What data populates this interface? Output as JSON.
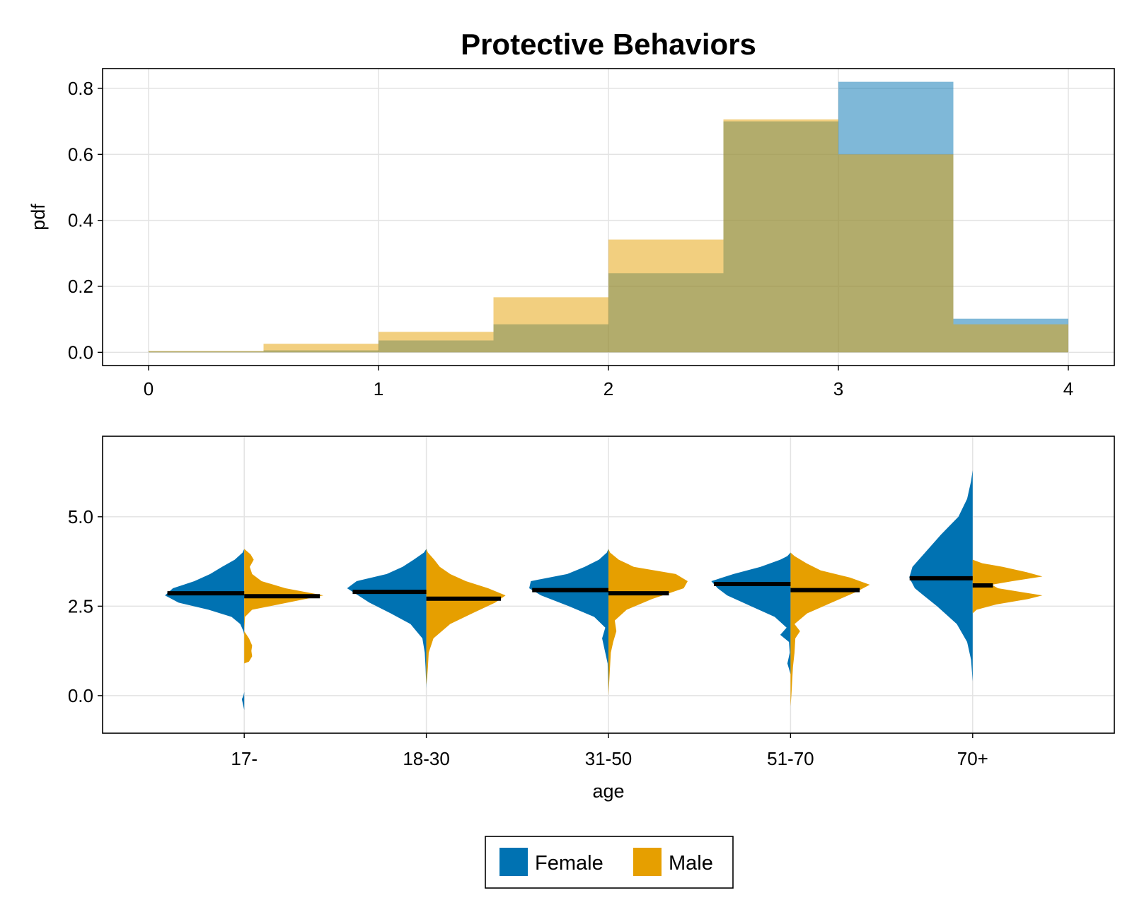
{
  "colors": {
    "female": "#0072b2",
    "male": "#e69f00"
  },
  "chart_data": [
    {
      "type": "histogram",
      "title": "Protective  Behaviors",
      "xlabel": "",
      "ylabel": "pdf",
      "xlim": [
        -0.2,
        4.2
      ],
      "ylim": [
        -0.04,
        0.86
      ],
      "xticks": [
        "0",
        "1",
        "2",
        "3",
        "4"
      ],
      "yticks": [
        "0.0",
        "0.2",
        "0.4",
        "0.6",
        "0.8"
      ],
      "grid": true,
      "bin_edges": [
        0,
        0.5,
        1.0,
        1.5,
        2.0,
        2.5,
        3.0,
        3.5,
        4.0
      ],
      "series": [
        {
          "name": "Female",
          "color": "#0072b2",
          "opacity": 0.5,
          "values": [
            0.003,
            0.006,
            0.036,
            0.085,
            0.24,
            0.7,
            0.82,
            0.102
          ]
        },
        {
          "name": "Male",
          "color": "#e69f00",
          "opacity": 0.5,
          "values": [
            0.004,
            0.026,
            0.062,
            0.167,
            0.342,
            0.706,
            0.6,
            0.085
          ]
        }
      ]
    },
    {
      "type": "violin",
      "xlabel": "age",
      "ylabel": "",
      "categories": [
        "17-",
        "18-30",
        "31-50",
        "51-70",
        "70+"
      ],
      "ylim": [
        -1.05,
        7.25
      ],
      "yticks": [
        "0.0",
        "2.5",
        "5.0"
      ],
      "grid": true,
      "side_by_side": {
        "left": "Female",
        "right": "Male"
      },
      "medians": {
        "Female": [
          2.86,
          2.9,
          2.95,
          3.12,
          3.28
        ],
        "Male": [
          2.78,
          2.71,
          2.86,
          2.95,
          3.08
        ]
      },
      "density_profiles": {
        "Female": [
          [
            [
              -0.4,
              0
            ],
            [
              -0.3,
              0.01
            ],
            [
              -0.1,
              0.03
            ],
            [
              0.0,
              0.01
            ],
            [
              0.1,
              0
            ],
            [
              1.7,
              0
            ],
            [
              1.8,
              0.01
            ],
            [
              2.0,
              0.05
            ],
            [
              2.2,
              0.16
            ],
            [
              2.4,
              0.45
            ],
            [
              2.6,
              0.83
            ],
            [
              2.8,
              1.0
            ],
            [
              3.0,
              0.9
            ],
            [
              3.2,
              0.63
            ],
            [
              3.4,
              0.43
            ],
            [
              3.6,
              0.28
            ],
            [
              3.8,
              0.12
            ],
            [
              4.0,
              0.02
            ],
            [
              4.1,
              0
            ]
          ],
          [
            [
              0.2,
              0
            ],
            [
              0.8,
              0.01
            ],
            [
              1.2,
              0.02
            ],
            [
              1.6,
              0.05
            ],
            [
              2.0,
              0.2
            ],
            [
              2.3,
              0.45
            ],
            [
              2.6,
              0.72
            ],
            [
              2.8,
              0.86
            ],
            [
              3.0,
              1.0
            ],
            [
              3.2,
              0.88
            ],
            [
              3.4,
              0.5
            ],
            [
              3.6,
              0.3
            ],
            [
              3.8,
              0.16
            ],
            [
              4.0,
              0.03
            ],
            [
              4.1,
              0
            ]
          ],
          [
            [
              0.1,
              0
            ],
            [
              0.9,
              0.01
            ],
            [
              1.3,
              0.05
            ],
            [
              1.6,
              0.08
            ],
            [
              1.9,
              0.04
            ],
            [
              2.2,
              0.18
            ],
            [
              2.5,
              0.5
            ],
            [
              2.8,
              0.85
            ],
            [
              3.0,
              1.0
            ],
            [
              3.2,
              0.98
            ],
            [
              3.4,
              0.52
            ],
            [
              3.6,
              0.3
            ],
            [
              3.8,
              0.12
            ],
            [
              4.0,
              0.02
            ],
            [
              4.1,
              0
            ]
          ],
          [
            [
              0.6,
              0
            ],
            [
              0.9,
              0.04
            ],
            [
              1.2,
              0.01
            ],
            [
              1.5,
              0.02
            ],
            [
              1.7,
              0.13
            ],
            [
              1.9,
              0.05
            ],
            [
              2.2,
              0.2
            ],
            [
              2.5,
              0.5
            ],
            [
              2.8,
              0.8
            ],
            [
              3.0,
              0.92
            ],
            [
              3.2,
              1.0
            ],
            [
              3.4,
              0.72
            ],
            [
              3.6,
              0.38
            ],
            [
              3.8,
              0.13
            ],
            [
              3.9,
              0.04
            ],
            [
              4.0,
              0
            ]
          ],
          [
            [
              0.4,
              0
            ],
            [
              1.0,
              0.02
            ],
            [
              1.5,
              0.07
            ],
            [
              2.0,
              0.2
            ],
            [
              2.5,
              0.45
            ],
            [
              2.8,
              0.62
            ],
            [
              3.0,
              0.73
            ],
            [
              3.3,
              0.8
            ],
            [
              3.6,
              0.76
            ],
            [
              4.0,
              0.6
            ],
            [
              4.5,
              0.4
            ],
            [
              5.0,
              0.18
            ],
            [
              5.5,
              0.07
            ],
            [
              6.0,
              0.02
            ],
            [
              6.3,
              0
            ]
          ]
        ],
        "Male": [
          [
            [
              0.9,
              0
            ],
            [
              0.95,
              0.06
            ],
            [
              1.1,
              0.1
            ],
            [
              1.25,
              0.09
            ],
            [
              1.4,
              0.1
            ],
            [
              1.6,
              0.06
            ],
            [
              1.8,
              0
            ],
            [
              2.2,
              0.01
            ],
            [
              2.4,
              0.1
            ],
            [
              2.6,
              0.55
            ],
            [
              2.8,
              1.0
            ],
            [
              3.0,
              0.52
            ],
            [
              3.2,
              0.22
            ],
            [
              3.4,
              0.1
            ],
            [
              3.6,
              0.07
            ],
            [
              3.8,
              0.12
            ],
            [
              3.95,
              0.08
            ],
            [
              4.1,
              0
            ]
          ],
          [
            [
              0.3,
              0
            ],
            [
              0.5,
              0.01
            ],
            [
              0.8,
              0.02
            ],
            [
              1.2,
              0.03
            ],
            [
              1.6,
              0.09
            ],
            [
              2.0,
              0.3
            ],
            [
              2.3,
              0.58
            ],
            [
              2.6,
              0.87
            ],
            [
              2.8,
              1.0
            ],
            [
              3.0,
              0.78
            ],
            [
              3.2,
              0.5
            ],
            [
              3.4,
              0.3
            ],
            [
              3.6,
              0.17
            ],
            [
              3.8,
              0.1
            ],
            [
              4.0,
              0.02
            ],
            [
              4.1,
              0
            ]
          ],
          [
            [
              0.0,
              0
            ],
            [
              0.4,
              0.01
            ],
            [
              0.8,
              0.02
            ],
            [
              1.2,
              0.03
            ],
            [
              1.5,
              0.06
            ],
            [
              1.8,
              0.1
            ],
            [
              2.1,
              0.08
            ],
            [
              2.4,
              0.23
            ],
            [
              2.7,
              0.55
            ],
            [
              3.0,
              0.95
            ],
            [
              3.2,
              1.0
            ],
            [
              3.4,
              0.85
            ],
            [
              3.6,
              0.32
            ],
            [
              3.8,
              0.13
            ],
            [
              4.0,
              0.02
            ],
            [
              4.1,
              0
            ]
          ],
          [
            [
              -0.3,
              0
            ],
            [
              0.0,
              0.01
            ],
            [
              0.4,
              0.02
            ],
            [
              0.8,
              0.03
            ],
            [
              1.2,
              0.05
            ],
            [
              1.6,
              0.06
            ],
            [
              1.8,
              0.12
            ],
            [
              2.0,
              0.05
            ],
            [
              2.3,
              0.21
            ],
            [
              2.6,
              0.52
            ],
            [
              2.9,
              0.83
            ],
            [
              3.1,
              1.0
            ],
            [
              3.3,
              0.75
            ],
            [
              3.5,
              0.38
            ],
            [
              3.7,
              0.2
            ],
            [
              3.9,
              0.05
            ],
            [
              4.0,
              0
            ]
          ],
          [
            [
              2.3,
              0
            ],
            [
              2.4,
              0.05
            ],
            [
              2.55,
              0.3
            ],
            [
              2.7,
              0.7
            ],
            [
              2.8,
              0.88
            ],
            [
              2.9,
              0.6
            ],
            [
              3.0,
              0.32
            ],
            [
              3.1,
              0.24
            ],
            [
              3.2,
              0.5
            ],
            [
              3.33,
              0.88
            ],
            [
              3.45,
              0.68
            ],
            [
              3.6,
              0.38
            ],
            [
              3.7,
              0.12
            ],
            [
              3.8,
              0
            ]
          ]
        ]
      }
    }
  ],
  "legend": {
    "items": [
      {
        "label": "Female",
        "color": "#0072b2"
      },
      {
        "label": "Male",
        "color": "#e69f00"
      }
    ]
  }
}
